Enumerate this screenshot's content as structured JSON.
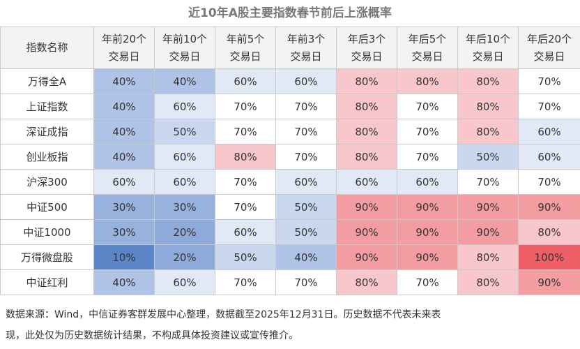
{
  "chart_data": {
    "type": "table",
    "title": "近10年A股主要指数春节前后上涨概率",
    "corner_header": "指数名称",
    "columns": [
      {
        "line1": "年前20个",
        "line2": "交易日"
      },
      {
        "line1": "年前10个",
        "line2": "交易日"
      },
      {
        "line1": "年前5个",
        "line2": "交易日"
      },
      {
        "line1": "年前3个",
        "line2": "交易日"
      },
      {
        "line1": "年后3个",
        "line2": "交易日"
      },
      {
        "line1": "年后5个",
        "line2": "交易日"
      },
      {
        "line1": "年后10个",
        "line2": "交易日"
      },
      {
        "line1": "年后20个",
        "line2": "交易日"
      }
    ],
    "rows": [
      {
        "name": "万得全A",
        "values": [
          40,
          40,
          60,
          60,
          80,
          80,
          80,
          70
        ]
      },
      {
        "name": "上证指数",
        "values": [
          40,
          60,
          70,
          70,
          80,
          70,
          80,
          70
        ]
      },
      {
        "name": "深证成指",
        "values": [
          40,
          50,
          70,
          70,
          80,
          70,
          80,
          60
        ]
      },
      {
        "name": "创业板指",
        "values": [
          40,
          60,
          80,
          70,
          80,
          70,
          50,
          60
        ]
      },
      {
        "name": "沪深300",
        "values": [
          60,
          60,
          70,
          60,
          60,
          60,
          70,
          70
        ]
      },
      {
        "name": "中证500",
        "values": [
          30,
          30,
          70,
          50,
          90,
          90,
          90,
          90
        ]
      },
      {
        "name": "中证1000",
        "values": [
          30,
          20,
          60,
          50,
          90,
          90,
          90,
          80
        ]
      },
      {
        "name": "万得微盘股",
        "values": [
          10,
          20,
          50,
          40,
          90,
          90,
          80,
          100
        ]
      },
      {
        "name": "中证红利",
        "values": [
          40,
          60,
          70,
          70,
          80,
          70,
          80,
          90
        ]
      }
    ],
    "value_suffix": "%",
    "colors": {
      "10": "#5b86c8",
      "20": "#8eaadb",
      "30": "#98b2de",
      "40": "#aec3e5",
      "50": "#c9d7ef",
      "60": "#e1e9f6",
      "70": "#ffffff",
      "80": "#f8c7cc",
      "90": "#f39da3",
      "100": "#ef5f68"
    }
  },
  "footnote": {
    "line1": "数据来源：Wind，中信证券客群发展中心整理，数据截至2025年12月31日。历史数据不代表未来表",
    "line2": "现，此处仅为历史数据统计结果，不构成具体投资建议或宣传推介。"
  }
}
